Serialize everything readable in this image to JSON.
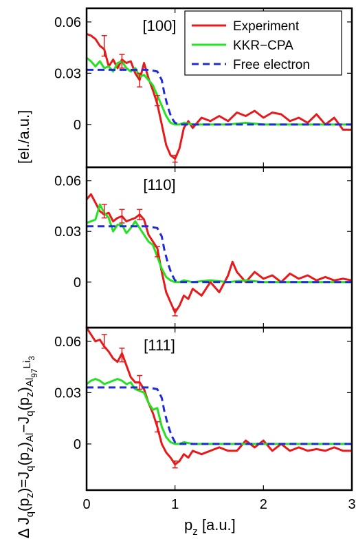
{
  "chart_data": {
    "type": "line",
    "ylabel_parts": {
      "a": "Δ J",
      "b": "q",
      "c": "(p",
      "d": "z",
      "e": ")=J",
      "f": "q",
      "g": "(p",
      "h": "z",
      "i": ")",
      "j": "Al",
      "k": "−J",
      "l": "q",
      "m": "(p",
      "n": "z",
      "o": ")",
      "p": "Al",
      "q": "97",
      "r": "Li",
      "s": "3"
    },
    "yunit": "[el./a.u.]",
    "xlabel_main": "p",
    "xlabel_sub": "z",
    "xlabel_unit": " [a.u.]",
    "xlim": [
      0,
      3
    ],
    "xticks": [
      "0",
      "1",
      "2",
      "3"
    ],
    "yticks": [
      "0",
      "0.03",
      "0.06"
    ],
    "legend_position": "top-right",
    "legend": [
      {
        "name": "Experiment",
        "color": "#e8191b"
      },
      {
        "name": "KKR−CPA",
        "color": "#22e222"
      },
      {
        "name": "Free electron",
        "color": "#1f2bd6"
      }
    ],
    "panels": [
      {
        "label": "[100]",
        "ylim": [
          -0.025,
          0.068
        ],
        "series": [
          {
            "name": "Experiment",
            "x": [
              0,
              0.05,
              0.1,
              0.15,
              0.2,
              0.25,
              0.3,
              0.35,
              0.4,
              0.45,
              0.5,
              0.55,
              0.6,
              0.65,
              0.7,
              0.75,
              0.8,
              0.85,
              0.9,
              0.95,
              1.0,
              1.05,
              1.1,
              1.15,
              1.2,
              1.3,
              1.4,
              1.5,
              1.6,
              1.7,
              1.8,
              1.9,
              2.0,
              2.1,
              2.2,
              2.3,
              2.4,
              2.5,
              2.6,
              2.7,
              2.8,
              2.9,
              3.0
            ],
            "y": [
              0.053,
              0.052,
              0.05,
              0.046,
              0.044,
              0.034,
              0.038,
              0.033,
              0.038,
              0.036,
              0.037,
              0.03,
              0.026,
              0.036,
              0.027,
              0.02,
              0.012,
              0.0,
              -0.012,
              -0.018,
              -0.02,
              -0.014,
              -0.002,
              0.002,
              -0.002,
              0.004,
              0.002,
              0.005,
              0.002,
              0.007,
              0.005,
              0.008,
              0.004,
              0.007,
              0.006,
              0.002,
              0.004,
              0.001,
              0.006,
              0.0,
              0.004,
              -0.003,
              -0.003
            ]
          },
          {
            "name": "KKR−CPA",
            "x": [
              0,
              0.05,
              0.1,
              0.15,
              0.2,
              0.25,
              0.3,
              0.35,
              0.4,
              0.45,
              0.5,
              0.55,
              0.6,
              0.65,
              0.7,
              0.75,
              0.8,
              0.85,
              0.9,
              0.95,
              1.0,
              1.05,
              1.1,
              1.2,
              1.4,
              1.6,
              1.8,
              2.0,
              2.2,
              2.4,
              2.6,
              2.8,
              3.0
            ],
            "y": [
              0.039,
              0.037,
              0.034,
              0.037,
              0.033,
              0.034,
              0.031,
              0.036,
              0.037,
              0.033,
              0.031,
              0.033,
              0.028,
              0.029,
              0.026,
              0.023,
              0.017,
              0.011,
              0.005,
              0.001,
              0.0,
              0.0,
              0.001,
              0.0,
              0.0,
              0.0,
              0.001,
              0.0,
              0.0,
              0.0,
              0.0,
              0.0,
              0.0
            ]
          },
          {
            "name": "Free electron",
            "x": [
              0,
              0.1,
              0.2,
              0.3,
              0.4,
              0.5,
              0.6,
              0.7,
              0.8,
              0.85,
              0.88,
              0.92,
              0.96,
              1.0,
              1.05,
              1.1,
              1.2,
              1.5,
              2.0,
              2.5,
              3.0
            ],
            "y": [
              0.032,
              0.032,
              0.032,
              0.032,
              0.032,
              0.032,
              0.032,
              0.032,
              0.031,
              0.026,
              0.018,
              0.01,
              0.004,
              0.001,
              0.0,
              0.0,
              0.0,
              0.0,
              0.0,
              0.0,
              0.0
            ]
          }
        ],
        "errorbars": [
          {
            "x": 0.2,
            "y": 0.046,
            "e": 0.006
          },
          {
            "x": 0.4,
            "y": 0.037,
            "e": 0.004
          },
          {
            "x": 0.6,
            "y": 0.026,
            "e": 0.004
          },
          {
            "x": 0.8,
            "y": 0.014,
            "e": 0.003
          },
          {
            "x": 1.0,
            "y": -0.02,
            "e": 0.002
          }
        ]
      },
      {
        "label": "[110]",
        "ylim": [
          -0.027,
          0.068
        ],
        "series": [
          {
            "name": "Experiment",
            "x": [
              0,
              0.05,
              0.1,
              0.15,
              0.2,
              0.25,
              0.3,
              0.35,
              0.4,
              0.45,
              0.5,
              0.55,
              0.6,
              0.65,
              0.7,
              0.75,
              0.8,
              0.85,
              0.9,
              0.95,
              1.0,
              1.05,
              1.1,
              1.15,
              1.2,
              1.3,
              1.4,
              1.5,
              1.6,
              1.65,
              1.7,
              1.8,
              1.9,
              2.0,
              2.1,
              2.2,
              2.3,
              2.4,
              2.5,
              2.6,
              2.7,
              2.8,
              2.9,
              3.0
            ],
            "y": [
              0.049,
              0.052,
              0.047,
              0.042,
              0.04,
              0.041,
              0.036,
              0.038,
              0.039,
              0.036,
              0.037,
              0.038,
              0.04,
              0.037,
              0.028,
              0.024,
              0.02,
              0.006,
              -0.006,
              -0.012,
              -0.018,
              -0.014,
              -0.008,
              -0.01,
              -0.004,
              -0.008,
              0.0,
              -0.006,
              0.004,
              0.012,
              0.006,
              0.0,
              0.006,
              0.002,
              0.004,
              0.0,
              0.005,
              0.002,
              0.004,
              0.001,
              0.003,
              0.001,
              0.002,
              0.001
            ]
          },
          {
            "name": "KKR−CPA",
            "x": [
              0,
              0.05,
              0.1,
              0.15,
              0.2,
              0.25,
              0.3,
              0.35,
              0.4,
              0.45,
              0.5,
              0.55,
              0.6,
              0.65,
              0.7,
              0.75,
              0.8,
              0.85,
              0.9,
              0.95,
              1.0,
              1.05,
              1.1,
              1.2,
              1.4,
              1.6,
              1.8,
              2.0,
              2.2,
              2.4,
              2.6,
              2.8,
              3.0
            ],
            "y": [
              0.035,
              0.036,
              0.037,
              0.046,
              0.041,
              0.038,
              0.03,
              0.034,
              0.034,
              0.029,
              0.032,
              0.036,
              0.032,
              0.028,
              0.024,
              0.022,
              0.015,
              0.008,
              0.003,
              0.001,
              0.0,
              0.0,
              0.001,
              0.0,
              0.001,
              0.0,
              0.001,
              0.0,
              0.0,
              0.0,
              0.0,
              0.0,
              0.0
            ]
          },
          {
            "name": "Free electron",
            "x": [
              0,
              0.1,
              0.2,
              0.3,
              0.4,
              0.5,
              0.6,
              0.7,
              0.8,
              0.85,
              0.88,
              0.92,
              0.96,
              1.0,
              1.05,
              1.1,
              1.2,
              1.5,
              2.0,
              2.5,
              3.0
            ],
            "y": [
              0.033,
              0.033,
              0.033,
              0.033,
              0.033,
              0.033,
              0.033,
              0.033,
              0.032,
              0.027,
              0.019,
              0.011,
              0.005,
              0.001,
              0.0,
              0.0,
              0.0,
              0.0,
              0.0,
              0.0,
              0.0
            ]
          }
        ],
        "errorbars": [
          {
            "x": 0.2,
            "y": 0.042,
            "e": 0.004
          },
          {
            "x": 0.4,
            "y": 0.039,
            "e": 0.004
          },
          {
            "x": 0.6,
            "y": 0.04,
            "e": 0.003
          },
          {
            "x": 0.8,
            "y": 0.018,
            "e": 0.003
          },
          {
            "x": 1.0,
            "y": -0.018,
            "e": 0.002
          }
        ]
      },
      {
        "label": "[111]",
        "ylim": [
          -0.027,
          0.068
        ],
        "series": [
          {
            "name": "Experiment",
            "x": [
              0,
              0.05,
              0.1,
              0.15,
              0.2,
              0.25,
              0.3,
              0.35,
              0.4,
              0.45,
              0.5,
              0.55,
              0.6,
              0.65,
              0.7,
              0.75,
              0.8,
              0.85,
              0.9,
              0.95,
              1.0,
              1.05,
              1.1,
              1.15,
              1.2,
              1.3,
              1.4,
              1.5,
              1.6,
              1.7,
              1.8,
              1.9,
              2.0,
              2.1,
              2.2,
              2.3,
              2.4,
              2.5,
              2.6,
              2.7,
              2.8,
              2.9,
              3.0
            ],
            "y": [
              0.068,
              0.064,
              0.06,
              0.061,
              0.057,
              0.054,
              0.05,
              0.048,
              0.053,
              0.046,
              0.039,
              0.036,
              0.036,
              0.032,
              0.024,
              0.018,
              0.01,
              0.0,
              -0.005,
              -0.008,
              -0.012,
              -0.01,
              -0.006,
              -0.008,
              -0.004,
              -0.006,
              -0.004,
              -0.002,
              -0.004,
              -0.004,
              0.002,
              -0.002,
              0.002,
              -0.004,
              0.0,
              -0.004,
              -0.002,
              -0.004,
              -0.003,
              -0.004,
              -0.002,
              -0.004,
              -0.004
            ]
          },
          {
            "name": "KKR−CPA",
            "x": [
              0,
              0.05,
              0.1,
              0.15,
              0.2,
              0.25,
              0.3,
              0.35,
              0.4,
              0.45,
              0.5,
              0.55,
              0.6,
              0.65,
              0.7,
              0.75,
              0.8,
              0.85,
              0.9,
              0.95,
              1.0,
              1.05,
              1.1,
              1.2,
              1.4,
              1.6,
              1.8,
              2.0,
              2.2,
              2.4,
              2.6,
              2.8,
              3.0
            ],
            "y": [
              0.035,
              0.037,
              0.038,
              0.037,
              0.035,
              0.036,
              0.037,
              0.038,
              0.037,
              0.035,
              0.036,
              0.032,
              0.031,
              0.03,
              0.024,
              0.02,
              0.021,
              0.01,
              0.004,
              0.001,
              0.0,
              0.0,
              0.001,
              0.0,
              0.0,
              0.0,
              0.0,
              0.0,
              0.0,
              0.0,
              0.0,
              0.0,
              0.0
            ]
          },
          {
            "name": "Free electron",
            "x": [
              0,
              0.1,
              0.2,
              0.3,
              0.4,
              0.5,
              0.6,
              0.7,
              0.8,
              0.85,
              0.88,
              0.92,
              0.96,
              1.0,
              1.05,
              1.1,
              1.2,
              1.5,
              2.0,
              2.5,
              3.0
            ],
            "y": [
              0.033,
              0.033,
              0.033,
              0.033,
              0.033,
              0.033,
              0.033,
              0.033,
              0.032,
              0.027,
              0.019,
              0.011,
              0.005,
              0.001,
              0.0,
              0.0,
              0.0,
              0.0,
              0.0,
              0.0,
              0.0
            ]
          }
        ],
        "errorbars": [
          {
            "x": 0.2,
            "y": 0.06,
            "e": 0.004
          },
          {
            "x": 0.4,
            "y": 0.052,
            "e": 0.004
          },
          {
            "x": 0.6,
            "y": 0.036,
            "e": 0.004
          },
          {
            "x": 0.8,
            "y": 0.01,
            "e": 0.003
          },
          {
            "x": 1.0,
            "y": -0.012,
            "e": 0.002
          }
        ]
      }
    ]
  }
}
